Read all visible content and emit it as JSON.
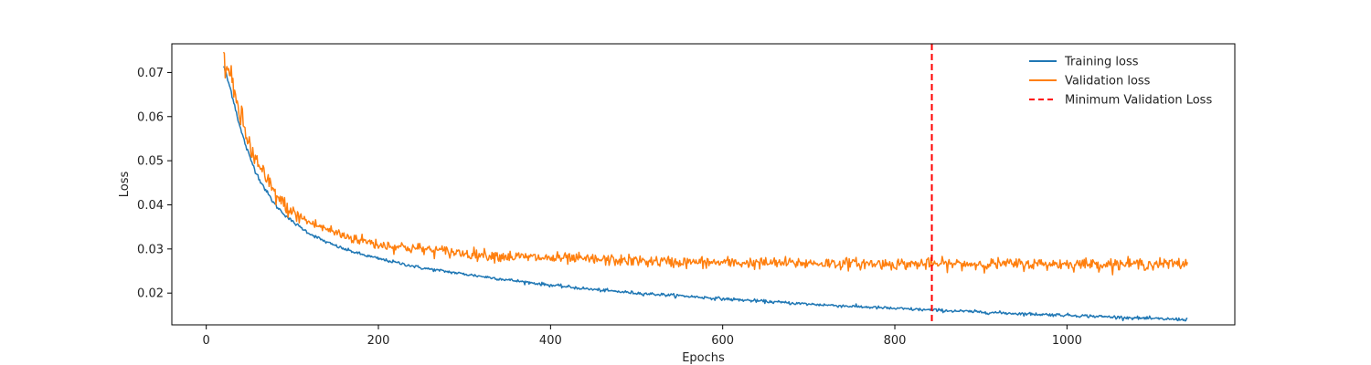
{
  "chart_data": {
    "type": "line",
    "xlabel": "Epochs",
    "ylabel": "Loss",
    "xlim": [
      -40,
      1195
    ],
    "ylim": [
      0.0128,
      0.0765
    ],
    "x_ticks": [
      0,
      200,
      400,
      600,
      800,
      1000
    ],
    "y_ticks": [
      0.02,
      0.03,
      0.04,
      0.05,
      0.06,
      0.07
    ],
    "grid": false,
    "legend_position": "top-right",
    "series": [
      {
        "name": "Training loss",
        "color": "#1f77b4",
        "x": [
          20,
          30,
          40,
          50,
          60,
          70,
          80,
          90,
          100,
          120,
          140,
          160,
          180,
          200,
          250,
          300,
          350,
          400,
          450,
          500,
          550,
          600,
          650,
          700,
          750,
          800,
          850,
          900,
          950,
          1000,
          1050,
          1100,
          1140
        ],
        "y": [
          0.0715,
          0.065,
          0.057,
          0.051,
          0.0465,
          0.043,
          0.04,
          0.038,
          0.0362,
          0.0335,
          0.0315,
          0.03,
          0.0288,
          0.0278,
          0.0257,
          0.0243,
          0.023,
          0.0218,
          0.0208,
          0.02,
          0.0194,
          0.0187,
          0.0181,
          0.0175,
          0.017,
          0.0165,
          0.0161,
          0.0157,
          0.0153,
          0.015,
          0.0146,
          0.0142,
          0.014
        ]
      },
      {
        "name": "Validation loss",
        "color": "#ff7f0e",
        "x": [
          20,
          30,
          40,
          50,
          60,
          70,
          80,
          90,
          100,
          120,
          140,
          160,
          180,
          200,
          250,
          300,
          350,
          400,
          450,
          500,
          550,
          600,
          650,
          700,
          750,
          800,
          850,
          900,
          950,
          1000,
          1050,
          1100,
          1140
        ],
        "y": [
          0.074,
          0.067,
          0.06,
          0.0535,
          0.049,
          0.0455,
          0.0425,
          0.04,
          0.0382,
          0.036,
          0.0345,
          0.033,
          0.032,
          0.031,
          0.03,
          0.029,
          0.0283,
          0.0279,
          0.0276,
          0.0273,
          0.027,
          0.0269,
          0.0268,
          0.0268,
          0.0267,
          0.0266,
          0.0266,
          0.0266,
          0.0266,
          0.0266,
          0.0266,
          0.0266,
          0.0266
        ]
      },
      {
        "name": "Minimum Validation Loss",
        "color": "#ff0000",
        "style": "dashed",
        "vline_x": 843
      }
    ]
  }
}
